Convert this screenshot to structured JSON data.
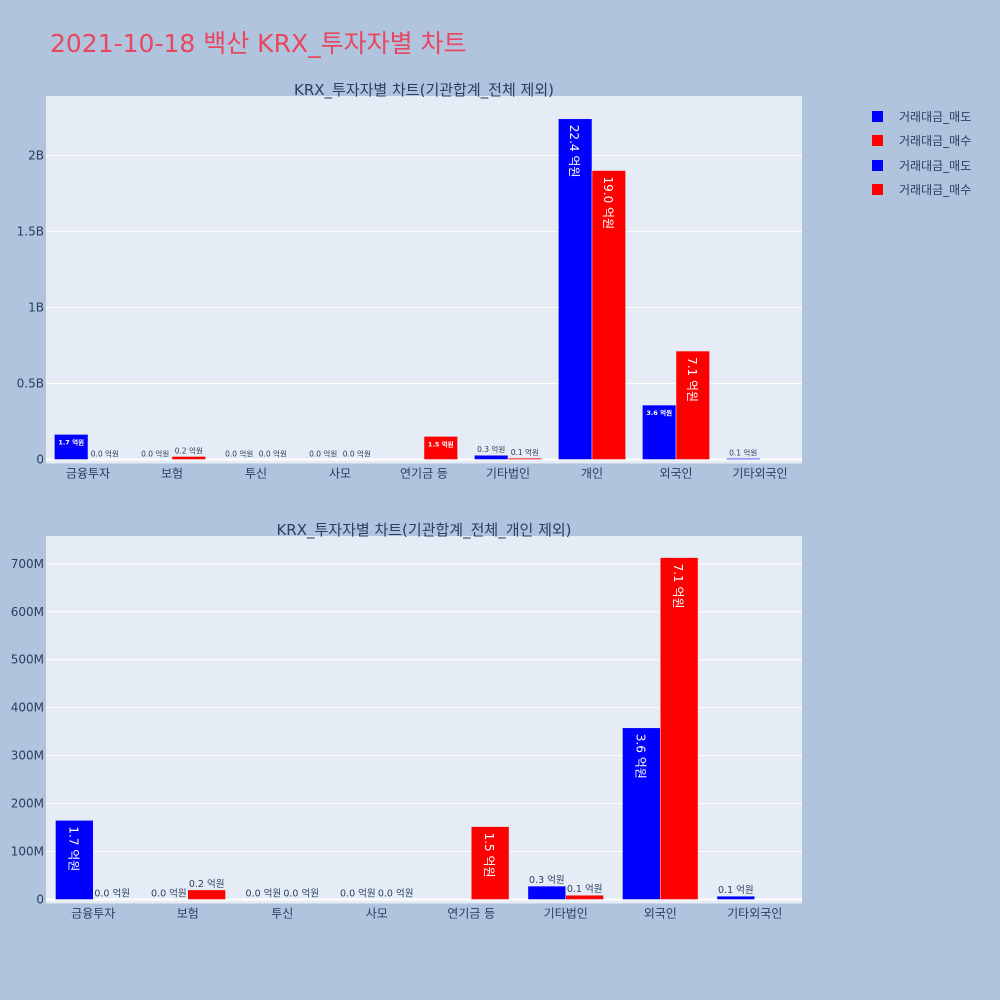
{
  "title": "2021-10-18 백산 KRX_투자자별 차트",
  "legend": [
    {
      "label": "거래대금_매도",
      "color": "#0000ff"
    },
    {
      "label": "거래대금_매수",
      "color": "#ff0000"
    },
    {
      "label": "거래대금_매도",
      "color": "#0000ff"
    },
    {
      "label": "거래대금_매수",
      "color": "#ff0000"
    }
  ],
  "chart_data": [
    {
      "type": "bar",
      "title": "KRX_투자자별 차트(기관합계_전체 제외)",
      "categories": [
        "금융투자",
        "보험",
        "투신",
        "사모",
        "연기금 등",
        "기타법인",
        "개인",
        "외국인",
        "기타외국인"
      ],
      "ylim": [
        0,
        2390000000
      ],
      "yticks": [
        0,
        500000000,
        1000000000,
        1500000000,
        2000000000
      ],
      "ytick_labels": [
        "0",
        "0.5B",
        "1B",
        "1.5B",
        "2B"
      ],
      "grid": true,
      "series": [
        {
          "name": "거래대금_매도",
          "color": "#0000ff",
          "values": [
            165000000,
            0,
            0,
            0,
            null,
            28000000,
            2240000000,
            358000000,
            7000000
          ],
          "labels": [
            "1.7 억원",
            "0.0 억원",
            "0.0 억원",
            "0.0 억원",
            "",
            "0.3 억원",
            "22.4 억원",
            "3.6 억원",
            "0.1 억원"
          ]
        },
        {
          "name": "거래대금_매수",
          "color": "#ff0000",
          "values": [
            0,
            20000000,
            0,
            0,
            152000000,
            9000000,
            1900000000,
            713000000,
            null
          ],
          "labels": [
            "0.0 억원",
            "0.2 억원",
            "0.0 억원",
            "0.0 억원",
            "1.5 억원",
            "0.1 억원",
            "19.0 억원",
            "7.1 억원",
            ""
          ]
        }
      ]
    },
    {
      "type": "bar",
      "title": "KRX_투자자별 차트(기관합계_전체_개인 제외)",
      "categories": [
        "금융투자",
        "보험",
        "투신",
        "사모",
        "연기금 등",
        "기타법인",
        "외국인",
        "기타외국인"
      ],
      "ylim": [
        0,
        758000000
      ],
      "yticks": [
        0,
        100000000,
        200000000,
        300000000,
        400000000,
        500000000,
        600000000,
        700000000
      ],
      "ytick_labels": [
        "0",
        "100M",
        "200M",
        "300M",
        "400M",
        "500M",
        "600M",
        "700M"
      ],
      "grid": true,
      "series": [
        {
          "name": "거래대금_매도",
          "color": "#0000ff",
          "values": [
            165000000,
            0,
            0,
            0,
            null,
            28000000,
            358000000,
            7000000
          ],
          "labels": [
            "1.7 억원",
            "0.0 억원",
            "0.0 억원",
            "0.0 억원",
            "",
            "0.3 억원",
            "3.6 억원",
            "0.1 억원"
          ]
        },
        {
          "name": "거래대금_매수",
          "color": "#ff0000",
          "values": [
            0,
            20000000,
            0,
            0,
            152000000,
            9000000,
            713000000,
            null
          ],
          "labels": [
            "0.0 억원",
            "0.2 억원",
            "0.0 억원",
            "0.0 억원",
            "1.5 억원",
            "0.1 억원",
            "7.1 억원",
            ""
          ]
        }
      ]
    }
  ]
}
